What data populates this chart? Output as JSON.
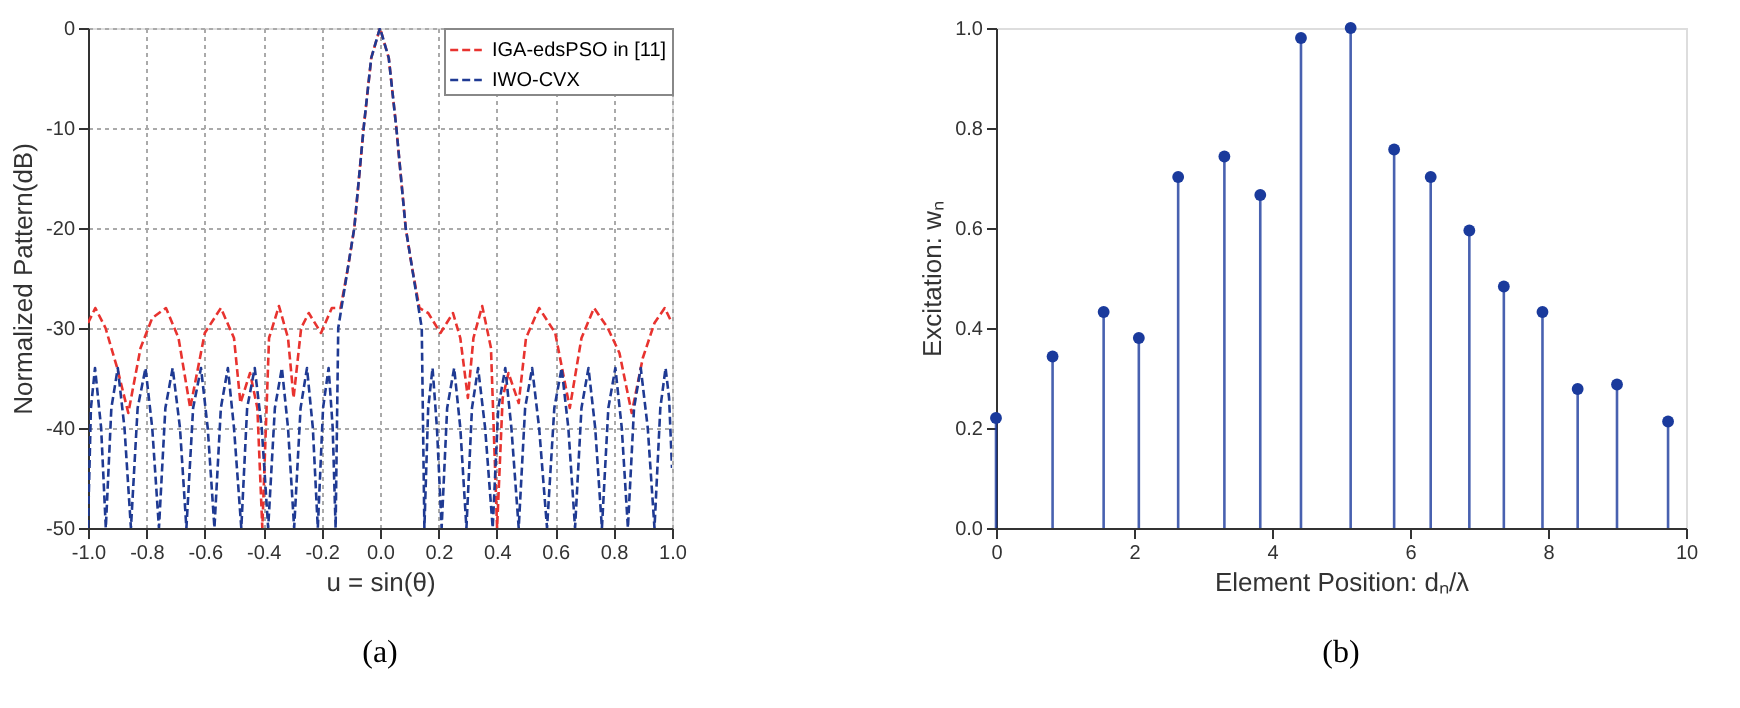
{
  "chart_data": [
    {
      "type": "line",
      "xlabel": "u = sin(θ)",
      "ylabel": "Normalized Pattern(dB)",
      "xlim": [
        -1.0,
        1.0
      ],
      "ylim": [
        -50,
        0
      ],
      "xticks": [
        {
          "value": -1.0,
          "label": "-1.0"
        },
        -0.8,
        -0.6,
        -0.4,
        -0.2,
        {
          "value": 0.0,
          "label": "0.0"
        },
        0.2,
        0.4,
        0.6,
        0.8,
        {
          "value": 1.0,
          "label": "1.0"
        }
      ],
      "yticks": [
        -50,
        -40,
        -30,
        -20,
        -10,
        0
      ],
      "grid": true,
      "legend": "top right",
      "series": [
        {
          "name": "IGA-edsPSO in [11]",
          "color": "#e8332f",
          "line_style": "dashed",
          "x": [
            -1.0,
            -0.975,
            -0.94,
            -0.9,
            -0.862,
            -0.82,
            -0.78,
            -0.733,
            -0.69,
            -0.65,
            -0.6,
            -0.545,
            -0.5,
            -0.478,
            -0.445,
            -0.42,
            -0.403,
            -0.38,
            -0.346,
            -0.315,
            -0.296,
            -0.27,
            -0.244,
            -0.202,
            -0.165,
            -0.135,
            -0.11,
            -0.088,
            -0.056,
            -0.03,
            0,
            0.03,
            0.056,
            0.088,
            0.11,
            0.135,
            0.165,
            0.207,
            0.25,
            0.275,
            0.301,
            0.32,
            0.35,
            0.38,
            0.401,
            0.42,
            0.44,
            0.475,
            0.5,
            0.545,
            0.6,
            0.65,
            0.69,
            0.733,
            0.78,
            0.82,
            0.862,
            0.9,
            0.94,
            0.975,
            1.0
          ],
          "values": [
            -29.5,
            -28,
            -30,
            -34,
            -38.5,
            -32,
            -29,
            -28,
            -31,
            -38,
            -30.5,
            -28,
            -31,
            -37.5,
            -34.5,
            -38,
            -50,
            -31,
            -27.8,
            -31,
            -37,
            -30,
            -28.5,
            -30.5,
            -28,
            -28,
            -24,
            -20,
            -10,
            -3,
            0,
            -3,
            -10,
            -20,
            -24,
            -28,
            -28.5,
            -30.5,
            -28.5,
            -31,
            -37,
            -31,
            -27.8,
            -32,
            -50,
            -37,
            -34.5,
            -37.5,
            -31,
            -28,
            -30.5,
            -38,
            -31,
            -28,
            -30,
            -32.5,
            -38.5,
            -33,
            -29.5,
            -28,
            -29.5
          ]
        },
        {
          "name": "IWO-CVX",
          "color": "#1f3a93",
          "line_style": "dashed",
          "x": [
            -1.0,
            -0.99,
            -0.976,
            -0.955,
            -0.939,
            -0.92,
            -0.898,
            -0.875,
            -0.853,
            -0.83,
            -0.803,
            -0.78,
            -0.757,
            -0.735,
            -0.71,
            -0.685,
            -0.663,
            -0.64,
            -0.613,
            -0.59,
            -0.567,
            -0.545,
            -0.521,
            -0.5,
            -0.475,
            -0.455,
            -0.429,
            -0.405,
            -0.383,
            -0.36,
            -0.336,
            -0.315,
            -0.294,
            -0.272,
            -0.25,
            -0.23,
            -0.213,
            -0.195,
            -0.176,
            -0.162,
            -0.152,
            -0.143,
            -0.11,
            -0.088,
            -0.056,
            -0.03,
            0,
            0.03,
            0.056,
            0.088,
            0.11,
            0.143,
            0.152,
            0.165,
            0.18,
            0.195,
            0.211,
            0.23,
            0.254,
            0.275,
            0.296,
            0.315,
            0.336,
            0.36,
            0.386,
            0.405,
            0.429,
            0.45,
            0.475,
            0.497,
            0.521,
            0.545,
            0.572,
            0.597,
            0.622,
            0.645,
            0.668,
            0.69,
            0.714,
            0.737,
            0.76,
            0.782,
            0.806,
            0.828,
            0.849,
            0.87,
            0.893,
            0.917,
            0.94,
            0.96,
            0.978,
            0.99,
            1.0
          ],
          "values": [
            -50,
            -38,
            -34,
            -40,
            -50,
            -38,
            -34,
            -40,
            -50,
            -38,
            -34,
            -40,
            -50,
            -38,
            -34,
            -40,
            -50,
            -38,
            -34,
            -40,
            -50,
            -38,
            -34,
            -40,
            -50,
            -38,
            -34,
            -40,
            -50,
            -38,
            -34,
            -40,
            -50,
            -38,
            -34,
            -40,
            -50,
            -38,
            -34,
            -40,
            -50,
            -30,
            -24,
            -20,
            -10,
            -3,
            0,
            -3,
            -10,
            -20,
            -24,
            -30,
            -50,
            -38,
            -34,
            -40,
            -50,
            -38,
            -34,
            -40,
            -50,
            -38,
            -34,
            -40,
            -50,
            -38,
            -34,
            -40,
            -50,
            -38,
            -34,
            -40,
            -50,
            -38,
            -34,
            -40,
            -50,
            -38,
            -34,
            -40,
            -50,
            -38,
            -34,
            -40,
            -50,
            -38,
            -34,
            -40,
            -50,
            -38,
            -34,
            -37,
            -44
          ]
        }
      ],
      "annotations": [
        "(a)"
      ]
    },
    {
      "type": "lollipop",
      "xlabel": "Element Position: dₙ/λ",
      "ylabel": "Excitation: wₙ",
      "xlim": [
        0,
        10
      ],
      "ylim": [
        0,
        1.0
      ],
      "xticks": [
        0,
        2,
        4,
        6,
        8,
        10
      ],
      "yticks": [
        {
          "value": 0,
          "label": "0.0"
        },
        0.2,
        0.4,
        0.6,
        0.8,
        {
          "value": 1.0,
          "label": "1.0"
        }
      ],
      "marker": "circle",
      "series": [
        {
          "color": "#1a3a9c",
          "x": [
            0,
            0.82,
            1.56,
            2.07,
            2.64,
            3.31,
            3.83,
            4.42,
            5.14,
            5.77,
            6.3,
            6.86,
            7.36,
            7.92,
            8.43,
            9.0,
            9.74
          ],
          "values": [
            0.22,
            0.343,
            0.432,
            0.38,
            0.702,
            0.743,
            0.666,
            0.98,
            1.0,
            0.757,
            0.702,
            0.595,
            0.483,
            0.432,
            0.278,
            0.287,
            0.213
          ]
        }
      ],
      "annotations": [
        "(b)"
      ]
    }
  ]
}
